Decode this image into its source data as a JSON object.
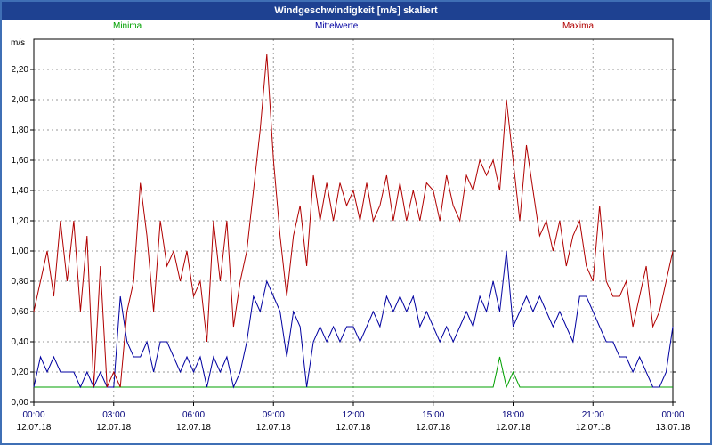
{
  "window": {
    "title": "Windgeschwindigkeit [m/s] skaliert"
  },
  "unit_label": "m/s",
  "colors": {
    "border": "#3f6fb5",
    "titlebar_bg": "#1e4191",
    "titlebar_text": "#ffffff",
    "plot_bg": "#ffffff",
    "grid": "#9a9a9a",
    "axis": "#000000",
    "time_label": "#00007a",
    "date_label": "#000000",
    "minima": "#00a000",
    "mittelwerte": "#0000a0",
    "maxima": "#b00000"
  },
  "chart_data": {
    "type": "line",
    "title": "Windgeschwindigkeit [m/s] skaliert",
    "xlabel": "",
    "ylabel": "m/s",
    "ylim": [
      0,
      2.4
    ],
    "xlim_minutes": [
      0,
      1440
    ],
    "x_interval_minutes": 15,
    "x_start": "00:00",
    "grid": "dashed",
    "legend_position": "top",
    "y_ticks": [
      {
        "label": "2,20",
        "value": 2.2
      },
      {
        "label": "2,00",
        "value": 2.0
      },
      {
        "label": "1,80",
        "value": 1.8
      },
      {
        "label": "1,60",
        "value": 1.6
      },
      {
        "label": "1,40",
        "value": 1.4
      },
      {
        "label": "1,20",
        "value": 1.2
      },
      {
        "label": "1,00",
        "value": 1.0
      },
      {
        "label": "0,80",
        "value": 0.8
      },
      {
        "label": "0,60",
        "value": 0.6
      },
      {
        "label": "0,40",
        "value": 0.4
      },
      {
        "label": "0,20",
        "value": 0.2
      },
      {
        "label": "0,00",
        "value": 0.0
      }
    ],
    "x_ticks": [
      {
        "time": "00:00",
        "date": "12.07.18",
        "minute": 0
      },
      {
        "time": "03:00",
        "date": "12.07.18",
        "minute": 180
      },
      {
        "time": "06:00",
        "date": "12.07.18",
        "minute": 360
      },
      {
        "time": "09:00",
        "date": "12.07.18",
        "minute": 540
      },
      {
        "time": "12:00",
        "date": "12.07.18",
        "minute": 720
      },
      {
        "time": "15:00",
        "date": "12.07.18",
        "minute": 900
      },
      {
        "time": "18:00",
        "date": "12.07.18",
        "minute": 1080
      },
      {
        "time": "21:00",
        "date": "12.07.18",
        "minute": 1260
      },
      {
        "time": "00:00",
        "date": "13.07.18",
        "minute": 1440
      }
    ],
    "series": [
      {
        "name": "Minima",
        "color": "#00a000",
        "values": [
          0.1,
          0.1,
          0.1,
          0.1,
          0.1,
          0.1,
          0.1,
          0.1,
          0.1,
          0.1,
          0.1,
          0.1,
          0.1,
          0.1,
          0.1,
          0.1,
          0.1,
          0.1,
          0.1,
          0.1,
          0.1,
          0.1,
          0.1,
          0.1,
          0.1,
          0.1,
          0.1,
          0.1,
          0.1,
          0.1,
          0.1,
          0.1,
          0.1,
          0.1,
          0.1,
          0.1,
          0.1,
          0.1,
          0.1,
          0.1,
          0.1,
          0.1,
          0.1,
          0.1,
          0.1,
          0.1,
          0.1,
          0.1,
          0.1,
          0.1,
          0.1,
          0.1,
          0.1,
          0.1,
          0.1,
          0.1,
          0.1,
          0.1,
          0.1,
          0.1,
          0.1,
          0.1,
          0.1,
          0.1,
          0.1,
          0.1,
          0.1,
          0.1,
          0.1,
          0.1,
          0.3,
          0.1,
          0.2,
          0.1,
          0.1,
          0.1,
          0.1,
          0.1,
          0.1,
          0.1,
          0.1,
          0.1,
          0.1,
          0.1,
          0.1,
          0.1,
          0.1,
          0.1,
          0.1,
          0.1,
          0.1,
          0.1,
          0.1,
          0.1,
          0.1,
          0.1,
          0.1
        ]
      },
      {
        "name": "Mittelwerte",
        "color": "#0000a0",
        "values": [
          0.1,
          0.3,
          0.2,
          0.3,
          0.2,
          0.2,
          0.2,
          0.1,
          0.2,
          0.1,
          0.2,
          0.1,
          0.1,
          0.7,
          0.4,
          0.3,
          0.3,
          0.4,
          0.2,
          0.4,
          0.4,
          0.3,
          0.2,
          0.3,
          0.2,
          0.3,
          0.1,
          0.3,
          0.2,
          0.3,
          0.1,
          0.2,
          0.4,
          0.7,
          0.6,
          0.8,
          0.7,
          0.6,
          0.3,
          0.6,
          0.5,
          0.1,
          0.4,
          0.5,
          0.4,
          0.5,
          0.4,
          0.5,
          0.5,
          0.4,
          0.5,
          0.6,
          0.5,
          0.7,
          0.6,
          0.7,
          0.6,
          0.7,
          0.5,
          0.6,
          0.5,
          0.4,
          0.5,
          0.4,
          0.5,
          0.6,
          0.5,
          0.7,
          0.6,
          0.8,
          0.6,
          1.0,
          0.5,
          0.6,
          0.7,
          0.6,
          0.7,
          0.6,
          0.5,
          0.6,
          0.5,
          0.4,
          0.7,
          0.7,
          0.6,
          0.5,
          0.4,
          0.4,
          0.3,
          0.3,
          0.2,
          0.3,
          0.2,
          0.1,
          0.1,
          0.2,
          0.5
        ]
      },
      {
        "name": "Maxima",
        "color": "#b00000",
        "values": [
          0.6,
          0.8,
          1.0,
          0.7,
          1.2,
          0.8,
          1.2,
          0.6,
          1.1,
          0.1,
          0.9,
          0.1,
          0.2,
          0.1,
          0.6,
          0.8,
          1.45,
          1.1,
          0.6,
          1.2,
          0.9,
          1.0,
          0.8,
          1.0,
          0.7,
          0.8,
          0.4,
          1.2,
          0.8,
          1.2,
          0.5,
          0.8,
          1.0,
          1.4,
          1.8,
          2.3,
          1.6,
          1.1,
          0.7,
          1.1,
          1.3,
          0.9,
          1.5,
          1.2,
          1.45,
          1.2,
          1.45,
          1.3,
          1.4,
          1.2,
          1.45,
          1.2,
          1.3,
          1.5,
          1.2,
          1.45,
          1.2,
          1.4,
          1.2,
          1.45,
          1.4,
          1.2,
          1.5,
          1.3,
          1.2,
          1.5,
          1.4,
          1.6,
          1.5,
          1.6,
          1.4,
          2.0,
          1.6,
          1.2,
          1.7,
          1.4,
          1.1,
          1.2,
          1.0,
          1.2,
          0.9,
          1.1,
          1.2,
          0.9,
          0.8,
          1.3,
          0.8,
          0.7,
          0.7,
          0.8,
          0.5,
          0.7,
          0.9,
          0.5,
          0.6,
          0.8,
          1.0
        ]
      }
    ]
  }
}
